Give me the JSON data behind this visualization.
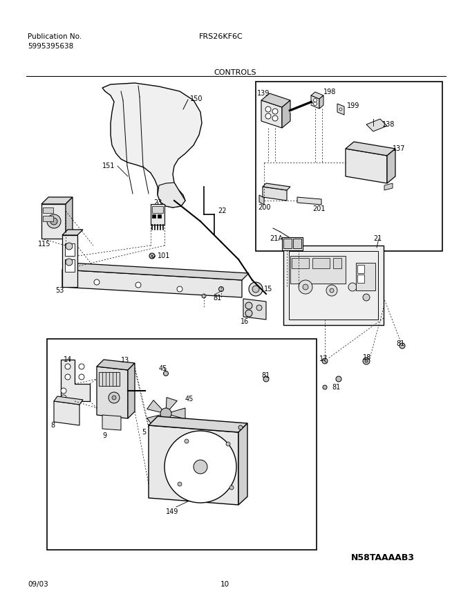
{
  "title_left_line1": "Publication No.",
  "title_left_line2": "5995395638",
  "title_center": "FRS26KF6C",
  "subtitle_center": "CONTROLS",
  "bottom_left": "09/03",
  "bottom_center": "10",
  "bottom_right": "N58TAAAAB3",
  "fig_width": 6.8,
  "fig_height": 8.69,
  "dpi": 100,
  "bg": "#ffffff"
}
